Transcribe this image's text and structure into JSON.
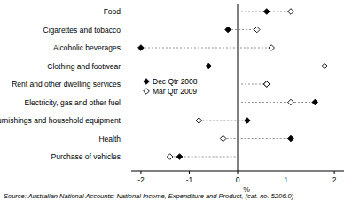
{
  "chart_data": {
    "type": "dot",
    "orientation": "horizontal",
    "categories": [
      "Food",
      "Cigarettes and tobacco",
      "Alcoholic beverages",
      "Clothing and footwear",
      "Rent and other dwelling services",
      "Electricity, gas and other fuel",
      "Furnishings and household equipment",
      "Health",
      "Purchase of vehicles"
    ],
    "series": [
      {
        "name": "Dec Qtr 2008",
        "color": "#000000",
        "marker": "diamond",
        "values": [
          0.6,
          -0.2,
          -2.0,
          -0.6,
          0.6,
          1.6,
          0.2,
          1.1,
          -1.2
        ]
      },
      {
        "name": "Mar Qtr 2009",
        "color": "#000000",
        "marker": "open_diamond",
        "values": [
          1.1,
          0.4,
          0.7,
          1.8,
          0.6,
          1.1,
          -0.8,
          -0.3,
          -1.4
        ]
      }
    ],
    "xlim": [
      -2.2,
      2.2
    ],
    "xticks": [
      -2,
      -1,
      0,
      1,
      2
    ],
    "x_label": "%",
    "legend": "left",
    "source": "Source: Australian National Accounts: National Income, Expenditure and Product, (cat. no. 5206.0)"
  }
}
